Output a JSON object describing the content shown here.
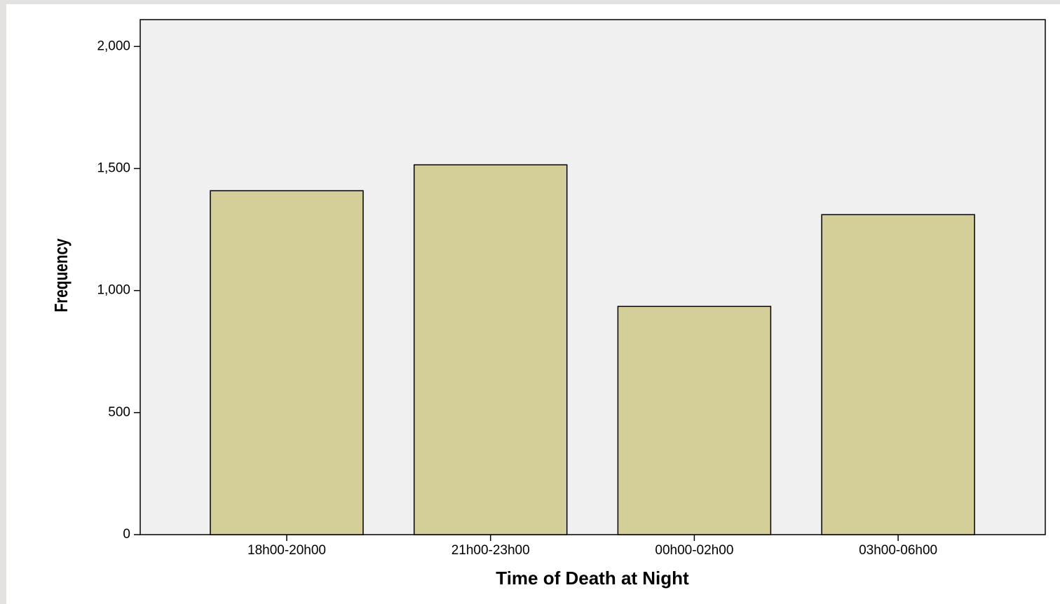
{
  "chart_data": {
    "type": "bar",
    "x_label": "Time of Death at Night",
    "y_label": "Frequency",
    "categories": [
      "18h00-20h00",
      "21h00-23h00",
      "00h00-02h00",
      "03h00-06h00"
    ],
    "values": [
      1409,
      1515,
      935,
      1311
    ],
    "color": "#d4cf98",
    "ylim": [
      0,
      2110
    ],
    "yticks": [
      0,
      500,
      {
        "value": 1000,
        "label": "1,000"
      },
      {
        "value": 1500,
        "label": "1,500"
      },
      {
        "value": 2000,
        "label": "2,000"
      }
    ]
  }
}
